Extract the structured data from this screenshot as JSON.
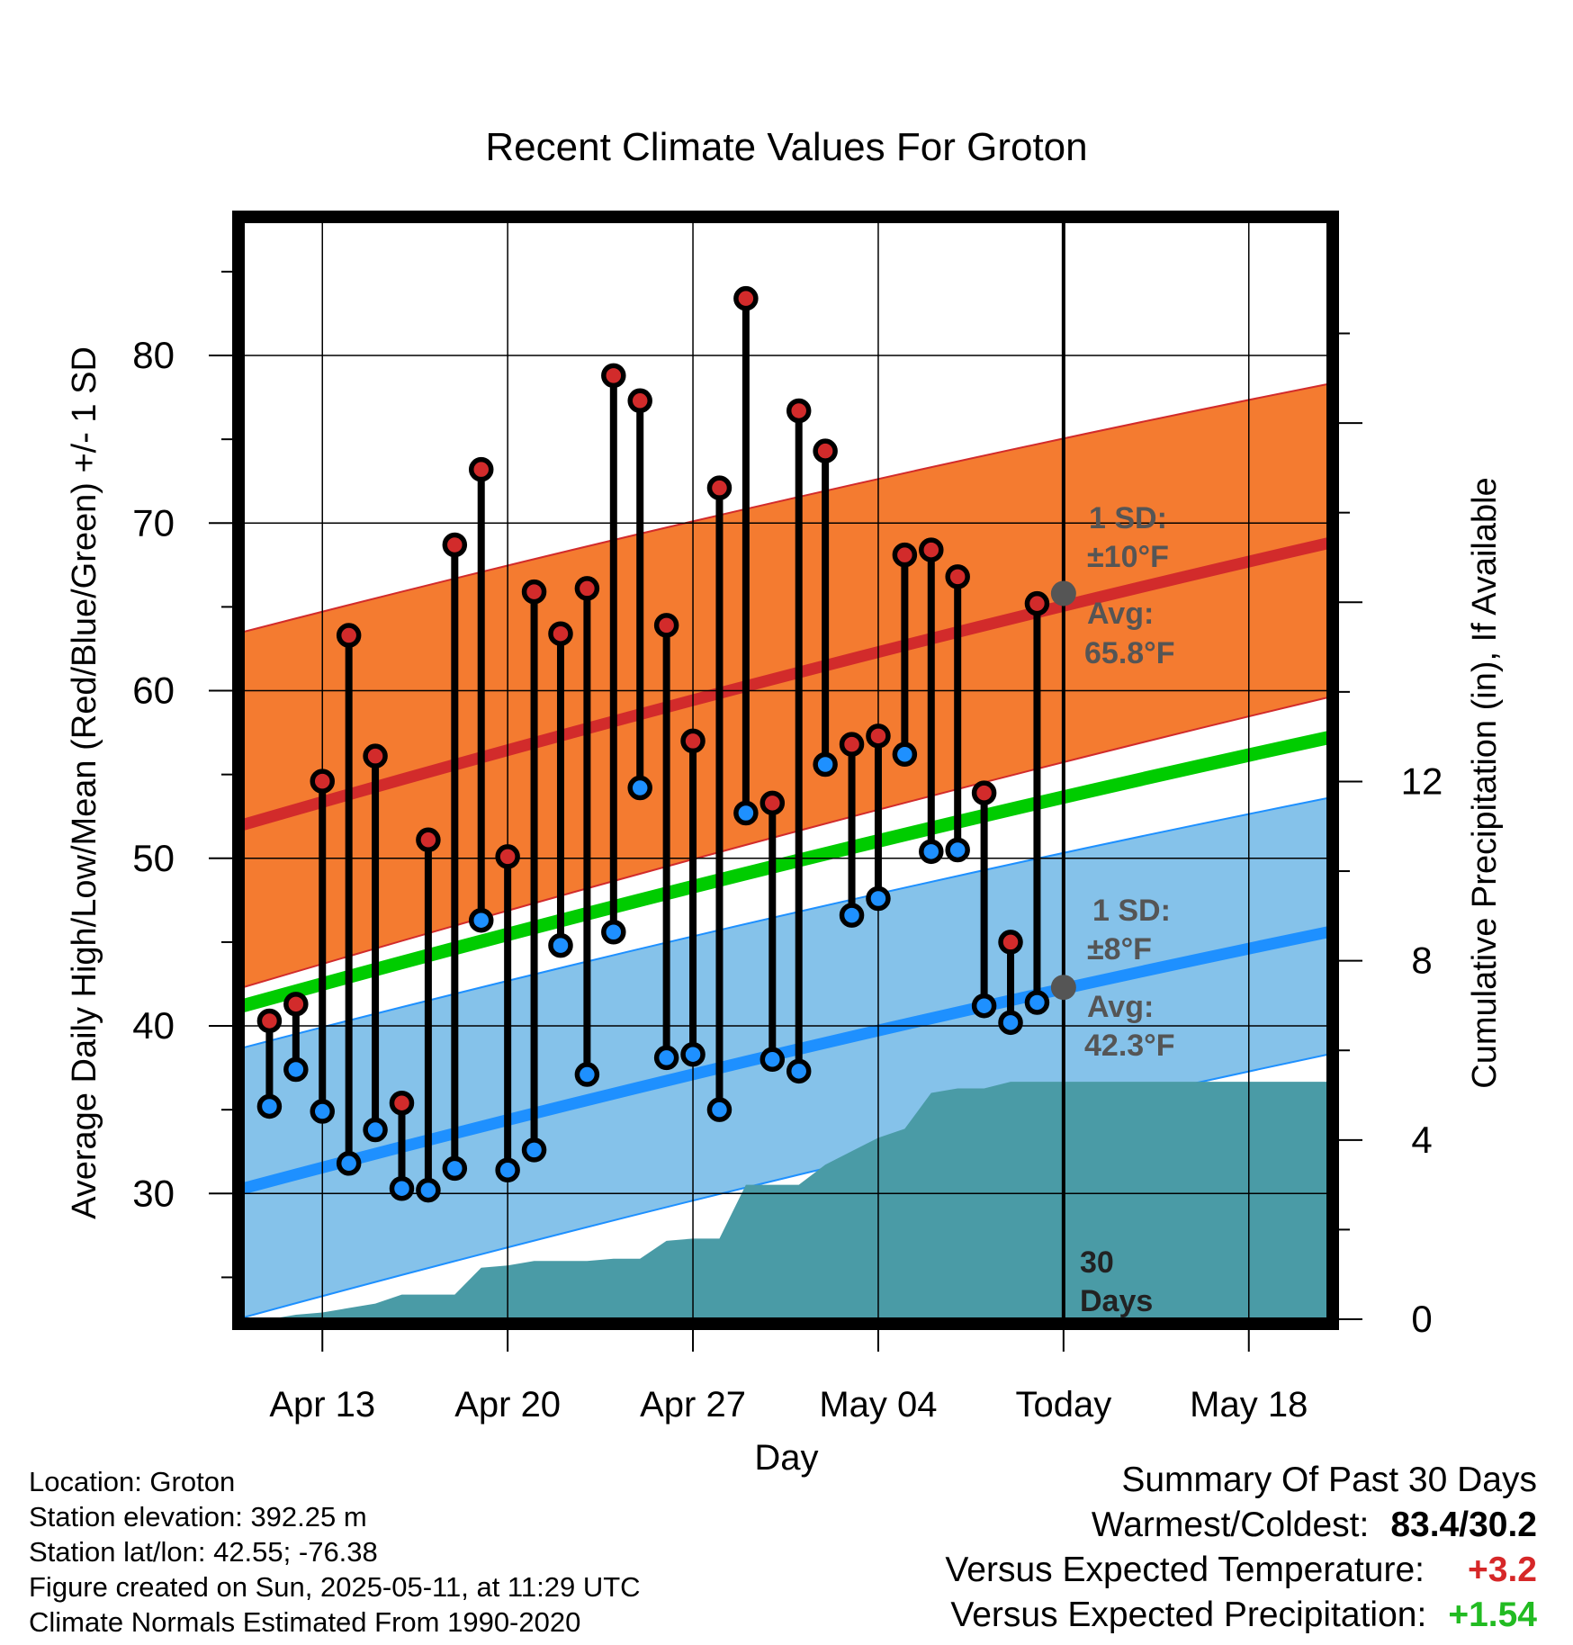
{
  "info": {
    "location": "Location: Groton",
    "elevation": "Station elevation: 392.25 m",
    "latlon": "Station lat/lon: 42.55; -76.38",
    "created": "Figure created on Sun, 2025-05-11, at 11:29 UTC",
    "normals": "Climate Normals Estimated From 1990-2020"
  },
  "summary": {
    "title": "Summary Of Past 30 Days",
    "warm_cold_label": "Warmest/Coldest:",
    "warm_cold_value": "83.4/30.2",
    "temp_label": "Versus Expected Temperature:",
    "temp_value": "+3.2",
    "precip_label": "Versus Expected Precipitation:",
    "precip_value": "+1.54",
    "temp_color": "#d62728",
    "precip_color": "#22bb22"
  },
  "chart_data": {
    "type": "line",
    "title": "Recent Climate Values For Groton",
    "xlabel": "Day",
    "ylabel": "Average Daily High/Low/Mean (Red/Blue/Green) +/- 1 SD",
    "y2label": "Cumulative Precipitation (in), If Available",
    "ylim": [
      22.5,
      88
    ],
    "y2lim": [
      0,
      24.5
    ],
    "yticks": [
      30,
      40,
      50,
      60,
      70,
      80
    ],
    "y2ticks": [
      0,
      4,
      8,
      12
    ],
    "xlim": [
      "2025-04-10",
      "2025-05-21"
    ],
    "xticks": [
      {
        "date": "2025-04-13",
        "label": "Apr 13"
      },
      {
        "date": "2025-04-20",
        "label": "Apr 20"
      },
      {
        "date": "2025-04-27",
        "label": "Apr 27"
      },
      {
        "date": "2025-05-04",
        "label": "May 04"
      },
      {
        "date": "2025-05-11",
        "label": "Today"
      },
      {
        "date": "2025-05-18",
        "label": "May 18"
      }
    ],
    "today": "2025-05-11",
    "period_label": "30 Days",
    "grid": true,
    "normals": {
      "dates": [
        "2025-04-10",
        "2025-05-21"
      ],
      "high_mean": [
        52.0,
        68.8
      ],
      "high_upper": [
        63.5,
        78.3
      ],
      "high_lower": [
        42.3,
        59.6
      ],
      "low_mean": [
        30.3,
        45.6
      ],
      "low_upper": [
        38.7,
        53.6
      ],
      "low_lower": [
        22.6,
        38.3
      ],
      "mean": [
        41.2,
        57.2
      ]
    },
    "annotations": {
      "high_sd": "1 SD:",
      "high_sd_value": "±10°F",
      "high_avg": "Avg:",
      "high_avg_value": "65.8°F",
      "high_today": 65.8,
      "low_sd": "1 SD:",
      "low_sd_value": "±8°F",
      "low_avg": "Avg:",
      "low_avg_value": "42.3°F",
      "low_today": 42.3
    },
    "days": [
      {
        "date": "2025-04-11",
        "high": 40.3,
        "low": 35.2
      },
      {
        "date": "2025-04-12",
        "high": 41.3,
        "low": 37.4
      },
      {
        "date": "2025-04-13",
        "high": 54.6,
        "low": 34.9
      },
      {
        "date": "2025-04-14",
        "high": 63.3,
        "low": 31.8
      },
      {
        "date": "2025-04-15",
        "high": 56.1,
        "low": 33.8
      },
      {
        "date": "2025-04-16",
        "high": 35.4,
        "low": 30.3
      },
      {
        "date": "2025-04-17",
        "high": 51.1,
        "low": 30.2
      },
      {
        "date": "2025-04-18",
        "high": 68.7,
        "low": 31.5
      },
      {
        "date": "2025-04-19",
        "high": 73.2,
        "low": 46.3
      },
      {
        "date": "2025-04-20",
        "high": 50.1,
        "low": 31.4
      },
      {
        "date": "2025-04-21",
        "high": 65.9,
        "low": 32.6
      },
      {
        "date": "2025-04-22",
        "high": 63.4,
        "low": 44.8
      },
      {
        "date": "2025-04-23",
        "high": 66.1,
        "low": 37.1
      },
      {
        "date": "2025-04-24",
        "high": 78.8,
        "low": 45.6
      },
      {
        "date": "2025-04-25",
        "high": 77.3,
        "low": 54.2
      },
      {
        "date": "2025-04-26",
        "high": 63.9,
        "low": 38.1
      },
      {
        "date": "2025-04-27",
        "high": 57.0,
        "low": 38.3
      },
      {
        "date": "2025-04-28",
        "high": 72.1,
        "low": 35.0
      },
      {
        "date": "2025-04-29",
        "high": 83.4,
        "low": 52.7
      },
      {
        "date": "2025-04-30",
        "high": 53.3,
        "low": 38.0
      },
      {
        "date": "2025-05-01",
        "high": 76.7,
        "low": 37.3
      },
      {
        "date": "2025-05-02",
        "high": 74.3,
        "low": 55.6
      },
      {
        "date": "2025-05-03",
        "high": 56.8,
        "low": 46.6
      },
      {
        "date": "2025-05-04",
        "high": 57.3,
        "low": 47.6
      },
      {
        "date": "2025-05-05",
        "high": 68.1,
        "low": 56.2
      },
      {
        "date": "2025-05-06",
        "high": 68.4,
        "low": 50.4
      },
      {
        "date": "2025-05-07",
        "high": 66.8,
        "low": 50.5
      },
      {
        "date": "2025-05-08",
        "high": 53.9,
        "low": 41.2
      },
      {
        "date": "2025-05-09",
        "high": 45.0,
        "low": 40.2
      },
      {
        "date": "2025-05-10",
        "high": 65.2,
        "low": 41.4
      }
    ],
    "precip": {
      "dates": [
        "2025-04-10",
        "2025-04-11",
        "2025-04-12",
        "2025-04-13",
        "2025-04-14",
        "2025-04-15",
        "2025-04-16",
        "2025-04-17",
        "2025-04-18",
        "2025-04-19",
        "2025-04-20",
        "2025-04-21",
        "2025-04-22",
        "2025-04-23",
        "2025-04-24",
        "2025-04-25",
        "2025-04-26",
        "2025-04-27",
        "2025-04-28",
        "2025-04-29",
        "2025-04-30",
        "2025-05-01",
        "2025-05-02",
        "2025-05-03",
        "2025-05-04",
        "2025-05-05",
        "2025-05-06",
        "2025-05-07",
        "2025-05-08",
        "2025-05-09",
        "2025-05-10",
        "2025-05-21"
      ],
      "values": [
        0.0,
        0.0,
        0.1,
        0.15,
        0.25,
        0.35,
        0.55,
        0.55,
        0.55,
        1.15,
        1.2,
        1.3,
        1.3,
        1.3,
        1.35,
        1.35,
        1.75,
        1.8,
        1.8,
        3.0,
        3.0,
        3.0,
        3.45,
        3.75,
        4.05,
        4.25,
        5.05,
        5.15,
        5.15,
        5.3,
        5.3,
        5.3
      ]
    },
    "colors": {
      "high_band": "#f47b30",
      "high_mean": "#d22b2b",
      "low_band": "#85c2ea",
      "low_mean": "#1e90ff",
      "mean": "#00cc00",
      "precip": "#4a9ba6",
      "high_dot": "#d22b2b",
      "low_dot": "#1e90ff",
      "annotation": "#555555"
    }
  }
}
